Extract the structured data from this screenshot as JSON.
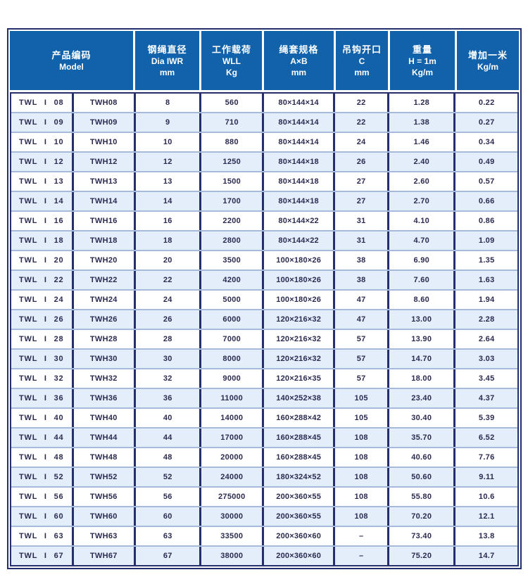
{
  "colors": {
    "header_bg": "#1162aa",
    "header_text": "#ffffff",
    "border_navy": "#252f6b",
    "row_alt_bg": "#e3eefa",
    "row_separator": "#a6badd",
    "body_text": "#2b2b52",
    "page_bg": "#ffffff"
  },
  "table": {
    "headers": [
      {
        "zh": "产品编码",
        "lines": [
          "Model"
        ]
      },
      {
        "zh": "钢绳直径",
        "lines": [
          "Dia IWR",
          "mm"
        ]
      },
      {
        "zh": "工作载荷",
        "lines": [
          "WLL",
          "Kg"
        ]
      },
      {
        "zh": "绳套规格",
        "lines": [
          "A×B",
          "mm"
        ]
      },
      {
        "zh": "吊钩开口",
        "lines": [
          "C",
          "mm"
        ]
      },
      {
        "zh": "重量",
        "lines": [
          "H = 1m",
          "Kg/m"
        ]
      },
      {
        "zh": "增加一米",
        "lines": [
          "Kg/m"
        ]
      }
    ],
    "rows": [
      [
        "TWL I 08",
        "TWH08",
        "8",
        "560",
        "80×144×14",
        "22",
        "1.28",
        "0.22"
      ],
      [
        "TWL I 09",
        "TWH09",
        "9",
        "710",
        "80×144×14",
        "22",
        "1.38",
        "0.27"
      ],
      [
        "TWL I 10",
        "TWH10",
        "10",
        "880",
        "80×144×14",
        "24",
        "1.46",
        "0.34"
      ],
      [
        "TWL I 12",
        "TWH12",
        "12",
        "1250",
        "80×144×18",
        "26",
        "2.40",
        "0.49"
      ],
      [
        "TWL I 13",
        "TWH13",
        "13",
        "1500",
        "80×144×18",
        "27",
        "2.60",
        "0.57"
      ],
      [
        "TWL I 14",
        "TWH14",
        "14",
        "1700",
        "80×144×18",
        "27",
        "2.70",
        "0.66"
      ],
      [
        "TWL I 16",
        "TWH16",
        "16",
        "2200",
        "80×144×22",
        "31",
        "4.10",
        "0.86"
      ],
      [
        "TWL I 18",
        "TWH18",
        "18",
        "2800",
        "80×144×22",
        "31",
        "4.70",
        "1.09"
      ],
      [
        "TWL I 20",
        "TWH20",
        "20",
        "3500",
        "100×180×26",
        "38",
        "6.90",
        "1.35"
      ],
      [
        "TWL I 22",
        "TWH22",
        "22",
        "4200",
        "100×180×26",
        "38",
        "7.60",
        "1.63"
      ],
      [
        "TWL I 24",
        "TWH24",
        "24",
        "5000",
        "100×180×26",
        "47",
        "8.60",
        "1.94"
      ],
      [
        "TWL I 26",
        "TWH26",
        "26",
        "6000",
        "120×216×32",
        "47",
        "13.00",
        "2.28"
      ],
      [
        "TWL I 28",
        "TWH28",
        "28",
        "7000",
        "120×216×32",
        "57",
        "13.90",
        "2.64"
      ],
      [
        "TWL I 30",
        "TWH30",
        "30",
        "8000",
        "120×216×32",
        "57",
        "14.70",
        "3.03"
      ],
      [
        "TWL I 32",
        "TWH32",
        "32",
        "9000",
        "120×216×35",
        "57",
        "18.00",
        "3.45"
      ],
      [
        "TWL I 36",
        "TWH36",
        "36",
        "11000",
        "140×252×38",
        "105",
        "23.40",
        "4.37"
      ],
      [
        "TWL I 40",
        "TWH40",
        "40",
        "14000",
        "160×288×42",
        "105",
        "30.40",
        "5.39"
      ],
      [
        "TWL I 44",
        "TWH44",
        "44",
        "17000",
        "160×288×45",
        "108",
        "35.70",
        "6.52"
      ],
      [
        "TWL I 48",
        "TWH48",
        "48",
        "20000",
        "160×288×45",
        "108",
        "40.60",
        "7.76"
      ],
      [
        "TWL I 52",
        "TWH52",
        "52",
        "24000",
        "180×324×52",
        "108",
        "50.60",
        "9.11"
      ],
      [
        "TWL I 56",
        "TWH56",
        "56",
        "275000",
        "200×360×55",
        "108",
        "55.80",
        "10.6"
      ],
      [
        "TWL I 60",
        "TWH60",
        "60",
        "30000",
        "200×360×55",
        "108",
        "70.20",
        "12.1"
      ],
      [
        "TWL I 63",
        "TWH63",
        "63",
        "33500",
        "200×360×60",
        "–",
        "73.40",
        "13.8"
      ],
      [
        "TWL I 67",
        "TWH67",
        "67",
        "38000",
        "200×360×60",
        "–",
        "75.20",
        "14.7"
      ]
    ]
  }
}
